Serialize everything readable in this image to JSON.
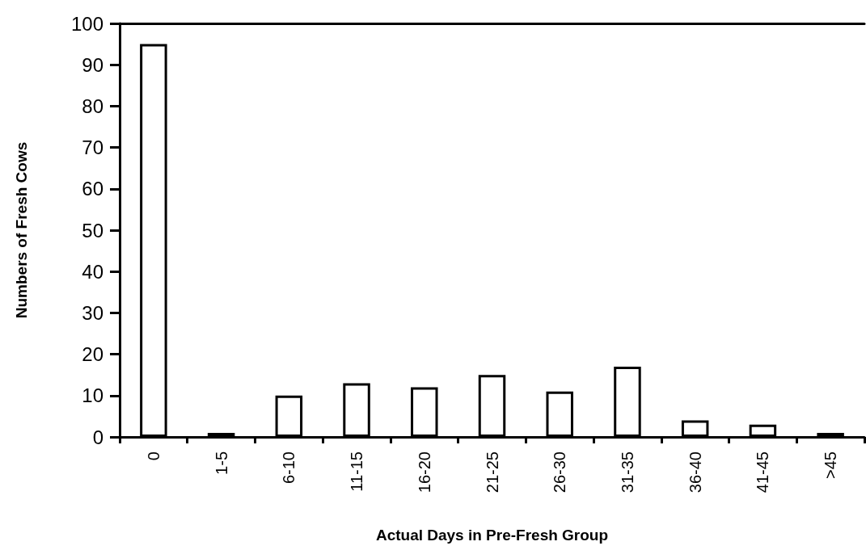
{
  "chart_data": {
    "type": "bar",
    "xlabel": "Actual Days in Pre-Fresh Group",
    "ylabel": "Numbers of Fresh Cows",
    "categories": [
      "0",
      "1-5",
      "6-10",
      "11-15",
      "16-20",
      "21-25",
      "26-30",
      "31-35",
      "36-40",
      "41-45",
      ">45"
    ],
    "values": [
      95,
      1,
      10,
      13,
      12,
      15,
      11,
      17,
      4,
      3,
      1
    ],
    "color": "#ffffff",
    "ylim": [
      0,
      100
    ],
    "yticks": [
      0,
      10,
      20,
      30,
      40,
      50,
      60,
      70,
      80,
      90,
      100
    ],
    "grid": false
  }
}
